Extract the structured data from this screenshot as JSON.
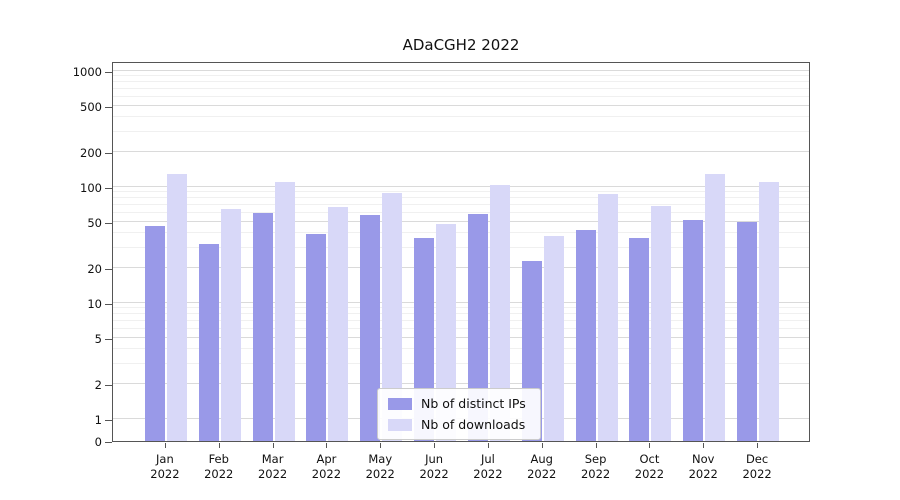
{
  "chart_data": {
    "type": "bar",
    "title": "ADaCGH2 2022",
    "xlabel": "",
    "ylabel": "",
    "year": "2022",
    "categories": [
      "Jan",
      "Feb",
      "Mar",
      "Apr",
      "May",
      "Jun",
      "Jul",
      "Aug",
      "Sep",
      "Oct",
      "Nov",
      "Dec"
    ],
    "series": [
      {
        "name": "Nb of distinct IPs",
        "color": "#9999e8",
        "values": [
          46,
          32,
          60,
          39,
          57,
          36,
          58,
          23,
          43,
          36,
          52,
          50
        ]
      },
      {
        "name": "Nb of downloads",
        "color": "#d8d8f8",
        "values": [
          130,
          65,
          110,
          67,
          88,
          48,
          105,
          38,
          87,
          69,
          130,
          110
        ]
      }
    ],
    "yticks": [
      0,
      1,
      2,
      5,
      10,
      20,
      50,
      100,
      200,
      500,
      1000
    ],
    "yscale": "symlog",
    "ylim": [
      0,
      1000
    ],
    "grid": "horizontal major and minor gridlines",
    "legend_position": "lower center inside plot"
  }
}
